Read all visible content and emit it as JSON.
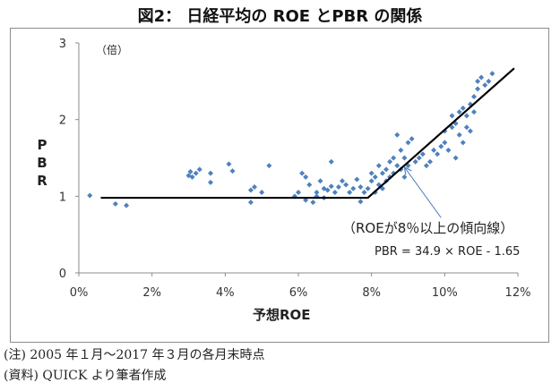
{
  "title": "図2： 日経平均の ROE とPBR の関係",
  "notes": {
    "note1": "(注) 2005 年１月～2017 年３月の各月末時点",
    "note2": "(資料) QUICK より筆者作成"
  },
  "chart_data": {
    "type": "scatter",
    "title": "図2： 日経平均の ROE とPBR の関係",
    "xlabel": "予想ROE",
    "ylabel": "PBR",
    "ylabel_chars": [
      "P",
      "B",
      "R"
    ],
    "unit_label": "（倍）",
    "xlim": [
      0,
      12
    ],
    "ylim": [
      0,
      3
    ],
    "x_ticks": [
      0,
      2,
      4,
      6,
      8,
      10,
      12
    ],
    "x_tick_labels": [
      "0%",
      "2%",
      "4%",
      "6%",
      "8%",
      "10%",
      "12%"
    ],
    "y_ticks": [
      0,
      1,
      2,
      3
    ],
    "y_tick_labels": [
      "0",
      "1",
      "2",
      "3"
    ],
    "grid": false,
    "marker_color": "#4f81bd",
    "line_color": "#000000",
    "points": [
      [
        0.3,
        1.01
      ],
      [
        1.0,
        0.9
      ],
      [
        1.3,
        0.88
      ],
      [
        3.0,
        1.27
      ],
      [
        3.05,
        1.32
      ],
      [
        3.1,
        1.25
      ],
      [
        3.2,
        1.3
      ],
      [
        3.3,
        1.35
      ],
      [
        3.6,
        1.18
      ],
      [
        3.6,
        1.3
      ],
      [
        4.1,
        1.42
      ],
      [
        4.2,
        1.33
      ],
      [
        4.7,
        1.08
      ],
      [
        4.8,
        1.12
      ],
      [
        5.0,
        1.05
      ],
      [
        4.7,
        0.92
      ],
      [
        5.2,
        1.4
      ],
      [
        5.9,
        1.0
      ],
      [
        6.0,
        1.05
      ],
      [
        6.1,
        1.3
      ],
      [
        6.2,
        0.95
      ],
      [
        6.2,
        1.25
      ],
      [
        6.3,
        1.15
      ],
      [
        6.4,
        0.92
      ],
      [
        6.5,
        1.0
      ],
      [
        6.5,
        1.05
      ],
      [
        6.6,
        1.2
      ],
      [
        6.7,
        1.1
      ],
      [
        6.7,
        0.98
      ],
      [
        6.8,
        1.08
      ],
      [
        6.9,
        1.45
      ],
      [
        6.9,
        1.13
      ],
      [
        7.0,
        1.05
      ],
      [
        7.1,
        1.12
      ],
      [
        7.2,
        1.2
      ],
      [
        7.3,
        1.15
      ],
      [
        7.4,
        1.05
      ],
      [
        7.5,
        1.1
      ],
      [
        7.6,
        1.22
      ],
      [
        7.7,
        1.12
      ],
      [
        7.7,
        0.93
      ],
      [
        7.8,
        1.05
      ],
      [
        7.9,
        1.1
      ],
      [
        8.0,
        1.2
      ],
      [
        8.0,
        1.3
      ],
      [
        8.1,
        1.05
      ],
      [
        8.1,
        1.25
      ],
      [
        8.2,
        1.15
      ],
      [
        8.2,
        1.4
      ],
      [
        8.3,
        1.1
      ],
      [
        8.3,
        1.3
      ],
      [
        8.4,
        1.2
      ],
      [
        8.4,
        1.35
      ],
      [
        8.5,
        1.25
      ],
      [
        8.5,
        1.45
      ],
      [
        8.6,
        1.3
      ],
      [
        8.6,
        1.5
      ],
      [
        8.7,
        1.8
      ],
      [
        8.7,
        1.4
      ],
      [
        8.8,
        1.35
      ],
      [
        8.8,
        1.6
      ],
      [
        8.9,
        1.25
      ],
      [
        8.9,
        1.5
      ],
      [
        9.0,
        1.4
      ],
      [
        9.0,
        1.7
      ],
      [
        9.1,
        1.75
      ],
      [
        9.2,
        1.45
      ],
      [
        9.3,
        1.5
      ],
      [
        9.4,
        1.55
      ],
      [
        9.5,
        1.4
      ],
      [
        9.6,
        1.45
      ],
      [
        9.7,
        1.6
      ],
      [
        9.8,
        1.55
      ],
      [
        9.9,
        1.65
      ],
      [
        10.0,
        1.7
      ],
      [
        10.0,
        1.85
      ],
      [
        10.1,
        1.6
      ],
      [
        10.2,
        1.9
      ],
      [
        10.2,
        2.05
      ],
      [
        10.3,
        1.5
      ],
      [
        10.3,
        1.95
      ],
      [
        10.4,
        1.8
      ],
      [
        10.4,
        2.1
      ],
      [
        10.5,
        1.7
      ],
      [
        10.5,
        2.15
      ],
      [
        10.6,
        1.9
      ],
      [
        10.6,
        2.05
      ],
      [
        10.7,
        2.2
      ],
      [
        10.7,
        1.85
      ],
      [
        10.8,
        2.1
      ],
      [
        10.8,
        2.3
      ],
      [
        10.9,
        2.5
      ],
      [
        10.9,
        2.4
      ],
      [
        11.0,
        2.55
      ],
      [
        11.2,
        2.5
      ],
      [
        11.3,
        2.6
      ],
      [
        11.1,
        2.45
      ]
    ],
    "fit_line": [
      [
        0.6,
        0.98
      ],
      [
        7.9,
        0.98
      ],
      [
        11.9,
        2.67
      ]
    ],
    "annotation": {
      "label": "（ROEが8％以上の傾向線）",
      "formula": "PBR = 34.9 × ROE - 1.65",
      "arrow_from": [
        9.9,
        0.72
      ],
      "arrow_to": [
        8.9,
        1.38
      ]
    }
  }
}
